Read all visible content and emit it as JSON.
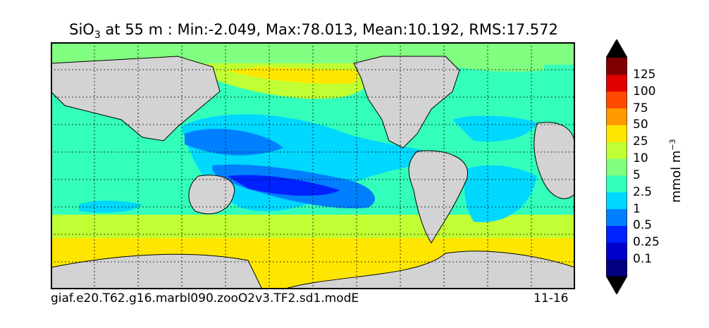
{
  "title": {
    "var": "SiO",
    "sub": "3",
    "text": " at 55 m : Min:-2.049, Max:78.013, Mean:10.192, RMS:17.572"
  },
  "footer": {
    "left": "giaf.e20.T62.g16.marbl090.zooO2v3.TF2.sd1.modE",
    "right": "11-16"
  },
  "colorbar": {
    "label_main": "mmol m",
    "label_sup": "−3",
    "ticks": [
      "0.1",
      "0.25",
      "0.5",
      "1",
      "2.5",
      "5",
      "10",
      "25",
      "50",
      "75",
      "100",
      "125"
    ],
    "colors": [
      "#000080",
      "#0000cd",
      "#0022ff",
      "#0080ff",
      "#00d8ff",
      "#33ffbb",
      "#80ff80",
      "#c0ff33",
      "#ffe600",
      "#ff9900",
      "#ff4a00",
      "#e00000",
      "#800000"
    ],
    "land_color": "#d3d3d3"
  }
}
